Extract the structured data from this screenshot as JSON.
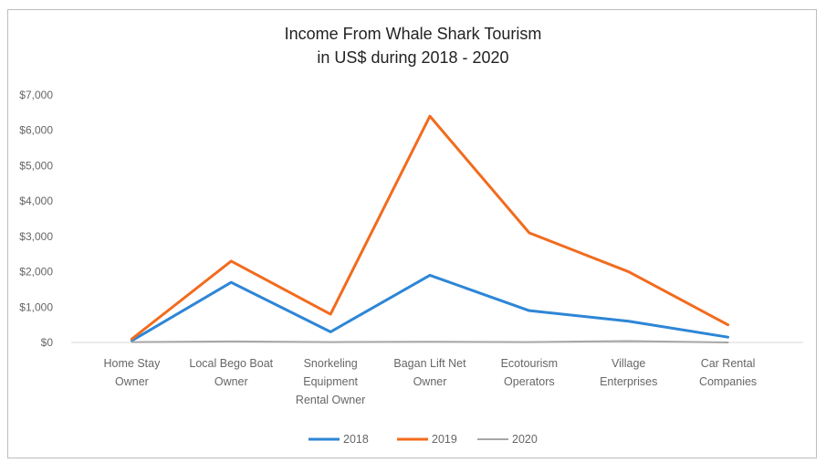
{
  "chart_data": {
    "type": "line",
    "title": [
      "Income From Whale Shark Tourism",
      "in US$ during 2018 - 2020"
    ],
    "xlabel": "",
    "ylabel": "",
    "ylim": [
      0,
      7000
    ],
    "yticks": [
      0,
      1000,
      2000,
      3000,
      4000,
      5000,
      6000,
      7000
    ],
    "ytick_labels": [
      "$0",
      "$1,000",
      "$2,000",
      "$3,000",
      "$4,000",
      "$5,000",
      "$6,000",
      "$7,000"
    ],
    "categories": [
      [
        "Home Stay",
        "Owner"
      ],
      [
        "Local Bego Boat",
        "Owner"
      ],
      [
        "Snorkeling",
        "Equipment",
        "Rental Owner"
      ],
      [
        "Bagan Lift Net",
        "Owner"
      ],
      [
        "Ecotourism",
        "Operators"
      ],
      [
        "Village",
        "Enterprises"
      ],
      [
        "Car Rental",
        "Companies"
      ]
    ],
    "series": [
      {
        "name": "2018",
        "color": "#2e86d6",
        "values": [
          50,
          1700,
          300,
          1900,
          900,
          600,
          150
        ]
      },
      {
        "name": "2019",
        "color": "#f26b1d",
        "values": [
          100,
          2300,
          800,
          6400,
          3100,
          2000,
          500
        ]
      },
      {
        "name": "2020",
        "color": "#a6a6a6",
        "values": [
          10,
          30,
          10,
          20,
          10,
          40,
          0
        ]
      }
    ],
    "grid": false,
    "legend": "bottom"
  }
}
